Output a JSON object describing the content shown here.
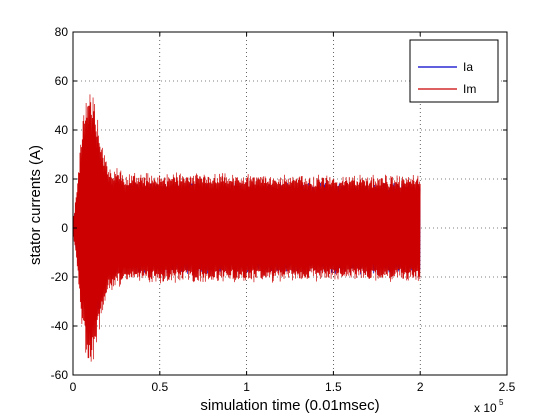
{
  "chart_data": {
    "type": "line",
    "xlabel": "simulation time (0.01msec)",
    "ylabel": "stator currents (A)",
    "x_multiplier_label": "x 10",
    "x_multiplier_exp": "5",
    "xlim": [
      0,
      2.5
    ],
    "ylim": [
      -60,
      80
    ],
    "xticks": [
      "0",
      "0.5",
      "1",
      "1.5",
      "2",
      "2.5"
    ],
    "yticks": [
      "-60",
      "-40",
      "-20",
      "0",
      "20",
      "40",
      "60",
      "80"
    ],
    "xtick_values": [
      0,
      0.5,
      1,
      1.5,
      2,
      2.5
    ],
    "ytick_values": [
      -60,
      -40,
      -20,
      0,
      20,
      40,
      60,
      80
    ],
    "grid": true,
    "legend_position": "top-right",
    "series": [
      {
        "name": "Ia",
        "color": "#0000cc",
        "envelope": {
          "t": [
            0,
            0.02,
            0.05,
            0.08,
            0.11,
            0.14,
            0.17,
            0.2,
            0.3,
            2.0
          ],
          "amplitude": [
            2,
            10,
            28,
            36,
            42,
            38,
            28,
            20,
            18,
            18
          ]
        },
        "end_x": 2.0
      },
      {
        "name": "Im",
        "color": "#cc0000",
        "envelope": {
          "t": [
            0,
            0.02,
            0.05,
            0.08,
            0.1,
            0.13,
            0.16,
            0.2,
            0.3,
            2.0
          ],
          "amplitude": [
            2,
            14,
            40,
            55,
            58,
            50,
            38,
            26,
            22,
            21
          ]
        },
        "end_x": 2.0
      }
    ]
  }
}
